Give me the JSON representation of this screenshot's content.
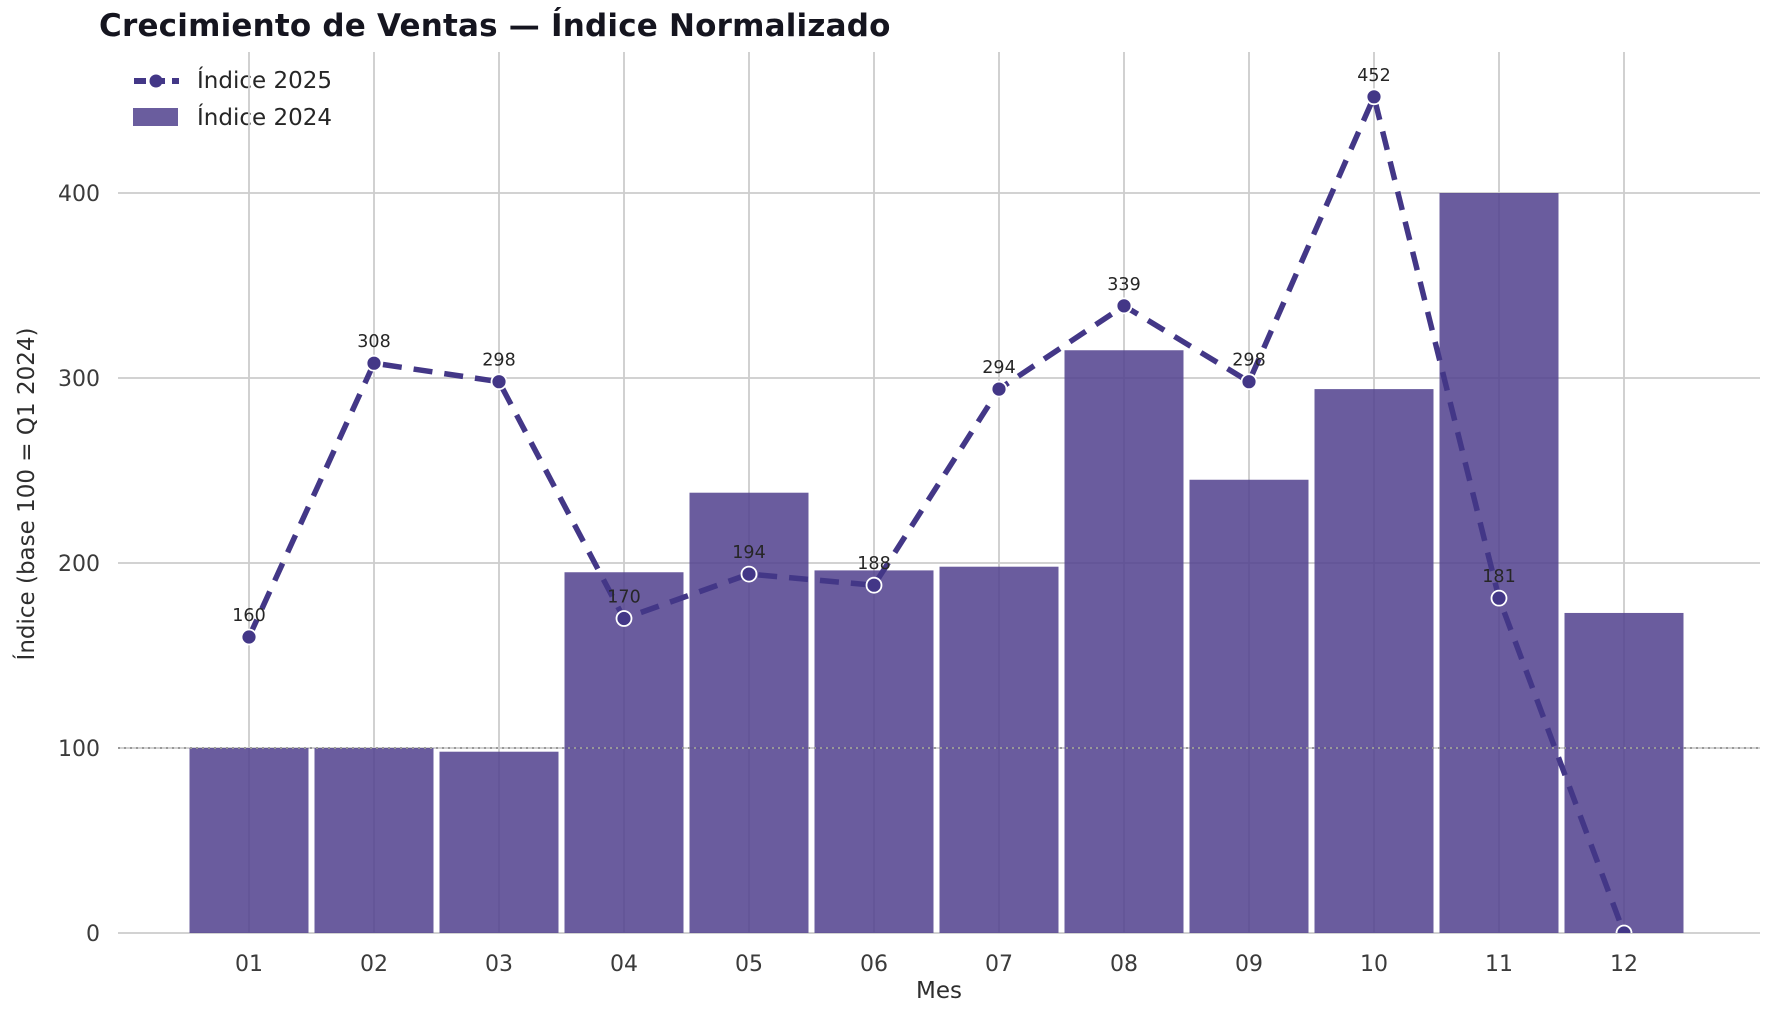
{
  "title": "Crecimiento de Ventas — Índice Normalizado",
  "axis": {
    "xlabel": "Mes",
    "ylabel": "Índice (base 100 = Q1 2024)"
  },
  "legend": {
    "items": [
      {
        "label": "Índice 2025",
        "swatch": "dashed-line-with-marker"
      },
      {
        "label": "Índice 2024",
        "swatch": "bar"
      }
    ],
    "position": "upper left"
  },
  "colors": {
    "bar": "#6a5d9e",
    "line": "#433787",
    "grid": "#cccccc",
    "reference_line": "#999999",
    "title": "#15151f",
    "tick": "#3b3b3b",
    "point_label": "#262626",
    "marker_edge": "#ffffff",
    "background": "#ffffff"
  },
  "chart_data": {
    "type": "combo",
    "title": "Crecimiento de Ventas — Índice Normalizado",
    "xlabel": "Mes",
    "ylabel": "Índice (base 100 = Q1 2024)",
    "categories": [
      "01",
      "02",
      "03",
      "04",
      "05",
      "06",
      "07",
      "08",
      "09",
      "10",
      "11",
      "12"
    ],
    "series": [
      {
        "name": "Índice 2025",
        "type": "line",
        "style": "dashed",
        "values": [
          160,
          308,
          298,
          170,
          194,
          188,
          294,
          339,
          298,
          452,
          181,
          0
        ],
        "point_labels": [
          "160",
          "308",
          "298",
          "170",
          "194",
          "188",
          "294",
          "339",
          "298",
          "452",
          "181",
          null
        ]
      },
      {
        "name": "Índice 2024",
        "type": "bar",
        "values": [
          100,
          100,
          98,
          195,
          238,
          196,
          198,
          315,
          245,
          294,
          400,
          173
        ]
      }
    ],
    "ylim": [
      0,
      476
    ],
    "yticks": [
      0,
      100,
      200,
      300,
      400
    ],
    "reference_line": {
      "y": 100,
      "style": "dotted"
    },
    "grid": true,
    "legend_position": "upper left"
  }
}
